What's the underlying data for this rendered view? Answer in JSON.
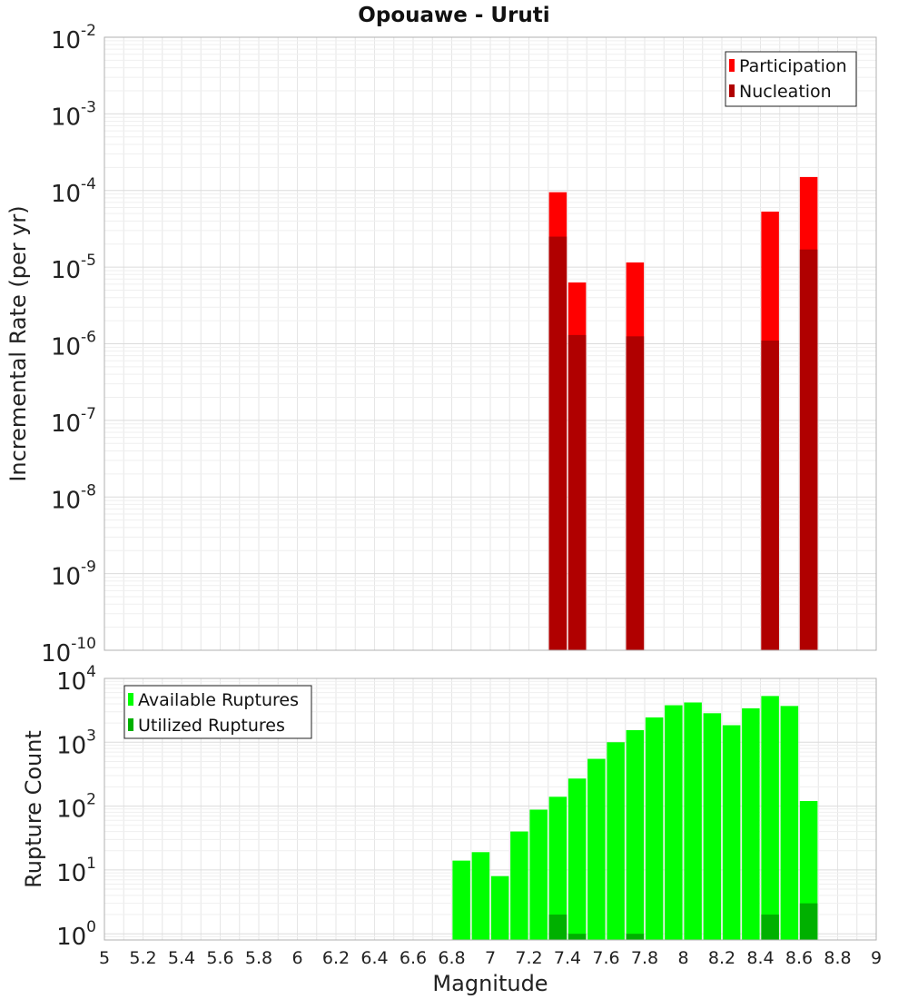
{
  "title": "Opouawe - Uruti",
  "xlabel": "Magnitude",
  "colors": {
    "participation": "#ff0000",
    "nucleation": "#b00000",
    "available": "#00ff00",
    "utilized": "#00b000",
    "grid": "#e6e6e6",
    "frame": "#b0b0b0"
  },
  "chart_data": [
    {
      "type": "bar",
      "ylabel": "Incremental Rate (per yr)",
      "yscale": "log",
      "ylim": [
        1e-10,
        0.01
      ],
      "xlim": [
        5,
        9
      ],
      "grid": true,
      "legend_position": "top-right",
      "x_ticks": [
        "5",
        "5.2",
        "5.4",
        "5.6",
        "5.8",
        "6",
        "6.2",
        "6.4",
        "6.6",
        "6.8",
        "7",
        "7.2",
        "7.4",
        "7.6",
        "7.8",
        "8",
        "8.2",
        "8.4",
        "8.6",
        "8.8",
        "9"
      ],
      "y_tick_exponents": [
        "-10",
        "-9",
        "-8",
        "-7",
        "-6",
        "-5",
        "-4",
        "-3",
        "-2"
      ],
      "y_tick_base": "10",
      "series": [
        {
          "name": "Participation",
          "x": [
            7.35,
            7.45,
            7.75,
            8.45,
            8.65
          ],
          "values": [
            9.5e-05,
            6.3e-06,
            1.15e-05,
            5.3e-05,
            0.00015
          ]
        },
        {
          "name": "Nucleation",
          "x": [
            7.35,
            7.45,
            7.75,
            8.45,
            8.65
          ],
          "values": [
            2.5e-05,
            1.3e-06,
            1.25e-06,
            1.1e-06,
            1.7e-05
          ]
        }
      ]
    },
    {
      "type": "bar",
      "ylabel": "Rupture Count",
      "yscale": "log",
      "ylim": [
        0.8,
        10000
      ],
      "xlim": [
        5,
        9
      ],
      "grid": true,
      "legend_position": "top-left",
      "x_ticks": [
        "5",
        "5.2",
        "5.4",
        "5.6",
        "5.8",
        "6",
        "6.2",
        "6.4",
        "6.6",
        "6.8",
        "7",
        "7.2",
        "7.4",
        "7.6",
        "7.8",
        "8",
        "8.2",
        "8.4",
        "8.6",
        "8.8",
        "9"
      ],
      "y_tick_exponents": [
        "0",
        "1",
        "2",
        "3",
        "4"
      ],
      "y_tick_base": "10",
      "series": [
        {
          "name": "Available Ruptures",
          "x": [
            6.85,
            6.95,
            7.05,
            7.15,
            7.25,
            7.35,
            7.45,
            7.55,
            7.65,
            7.75,
            7.85,
            7.95,
            8.05,
            8.15,
            8.25,
            8.35,
            8.45,
            8.55,
            8.65
          ],
          "values": [
            14,
            19,
            8,
            40,
            88,
            140,
            270,
            550,
            1000,
            1550,
            2450,
            3800,
            4200,
            2850,
            1850,
            3400,
            5300,
            3700,
            120
          ]
        },
        {
          "name": "Utilized Ruptures",
          "x": [
            7.35,
            7.45,
            7.75,
            8.45,
            8.65
          ],
          "values": [
            2,
            1,
            1,
            2,
            3
          ]
        }
      ]
    }
  ]
}
